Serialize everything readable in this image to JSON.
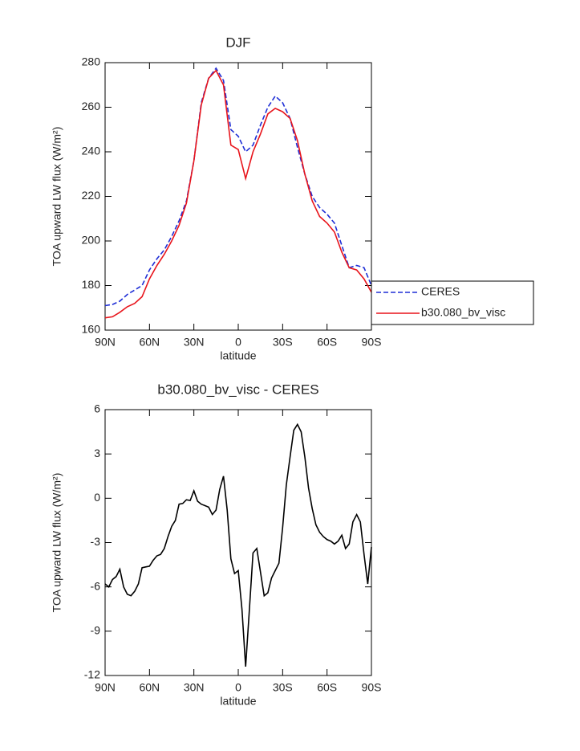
{
  "chart_data": [
    {
      "type": "line",
      "title": "DJF",
      "xlabel": "latitude",
      "ylabel": "TOA upward LW flux (W/m²)",
      "x": [
        90,
        85,
        80,
        75,
        70,
        65,
        60,
        55,
        50,
        45,
        40,
        35,
        30,
        25,
        20,
        15,
        10,
        5,
        0,
        -5,
        -10,
        -15,
        -20,
        -25,
        -30,
        -35,
        -40,
        -45,
        -50,
        -55,
        -60,
        -65,
        -70,
        -75,
        -80,
        -85,
        -90
      ],
      "series": [
        {
          "name": "CERES",
          "color": "#1f2fd6",
          "linestyle": "dashed",
          "values": [
            171,
            171.5,
            173,
            176,
            178,
            180,
            187,
            192,
            196,
            202,
            209,
            218,
            236,
            262,
            273,
            277.5,
            272,
            250,
            247,
            240,
            243,
            252,
            260,
            265,
            262,
            255,
            242,
            230,
            220,
            215,
            212,
            208,
            198,
            188,
            189,
            188,
            180
          ]
        },
        {
          "name": "b30.080_bv_visc",
          "color": "#e8141b",
          "linestyle": "solid",
          "values": [
            165.5,
            166,
            168,
            170.5,
            172,
            175,
            183,
            189,
            194,
            200,
            207,
            217,
            236,
            261,
            273,
            276.5,
            270,
            243,
            241,
            228,
            240,
            248,
            257,
            259.5,
            258,
            255,
            245,
            230,
            218,
            211,
            208,
            204,
            195,
            188,
            187,
            183,
            177
          ]
        }
      ],
      "xlim": [
        90,
        -90
      ],
      "xticks": [
        {
          "value": 90,
          "label": "90N"
        },
        {
          "value": 60,
          "label": "60N"
        },
        {
          "value": 30,
          "label": "30N"
        },
        0,
        {
          "value": -30,
          "label": "30S"
        },
        {
          "value": -60,
          "label": "60S"
        },
        {
          "value": -90,
          "label": "90S"
        }
      ],
      "ylim": [
        160,
        280
      ],
      "yticks": [
        160,
        180,
        200,
        220,
        240,
        260,
        280
      ],
      "legend": "right"
    },
    {
      "type": "line",
      "title": "b30.080_bv_visc - CERES",
      "xlabel": "latitude",
      "ylabel": "TOA upward LW flux (W/m²)",
      "x": [
        90,
        87.5,
        85,
        82.5,
        80,
        77.5,
        75,
        72.5,
        70,
        67.5,
        65,
        62.5,
        60,
        57.5,
        55,
        52.5,
        50,
        47.5,
        45,
        42.5,
        40,
        37.5,
        35,
        32.5,
        30,
        27.5,
        25,
        22.5,
        20,
        17.5,
        15,
        12.5,
        10,
        7.5,
        5,
        2.5,
        0,
        -2.5,
        -5,
        -7.5,
        -10,
        -12.5,
        -15,
        -17.5,
        -20,
        -22.5,
        -25,
        -27.5,
        -30,
        -32.5,
        -35,
        -37.5,
        -40,
        -42.5,
        -45,
        -47.5,
        -50,
        -52.5,
        -55,
        -57.5,
        -60,
        -62.5,
        -65,
        -67.5,
        -70,
        -72.5,
        -75,
        -77.5,
        -80,
        -82.5,
        -85,
        -87.5,
        -90
      ],
      "series": [
        {
          "color": "#000000",
          "linestyle": "solid",
          "values": [
            -5.8,
            -6.0,
            -5.5,
            -5.3,
            -4.8,
            -6.0,
            -6.5,
            -6.6,
            -6.3,
            -5.8,
            -4.7,
            -4.65,
            -4.6,
            -4.2,
            -3.9,
            -3.8,
            -3.4,
            -2.6,
            -1.9,
            -1.5,
            -0.4,
            -0.35,
            -0.1,
            -0.15,
            0.5,
            -0.2,
            -0.4,
            -0.5,
            -0.6,
            -1.1,
            -0.8,
            0.6,
            1.5,
            -0.8,
            -4.1,
            -5.1,
            -4.9,
            -7.5,
            -11.4,
            -7.6,
            -3.7,
            -3.4,
            -5.0,
            -6.6,
            -6.4,
            -5.4,
            -4.9,
            -4.4,
            -2.0,
            0.9,
            2.8,
            4.6,
            5.0,
            4.5,
            2.8,
            0.7,
            -0.7,
            -1.8,
            -2.3,
            -2.6,
            -2.8,
            -2.9,
            -3.1,
            -2.9,
            -2.5,
            -3.4,
            -3.1,
            -1.6,
            -1.1,
            -1.6,
            -3.8,
            -5.8,
            -3.3
          ]
        }
      ],
      "xlim": [
        90,
        -90
      ],
      "xticks": [
        {
          "value": 90,
          "label": "90N"
        },
        {
          "value": 60,
          "label": "60N"
        },
        {
          "value": 30,
          "label": "30N"
        },
        0,
        {
          "value": -30,
          "label": "30S"
        },
        {
          "value": -60,
          "label": "60S"
        },
        {
          "value": -90,
          "label": "90S"
        }
      ],
      "ylim": [
        -12,
        6
      ],
      "yticks": [
        -12,
        -9,
        -6,
        -3,
        0,
        3,
        6
      ]
    }
  ]
}
